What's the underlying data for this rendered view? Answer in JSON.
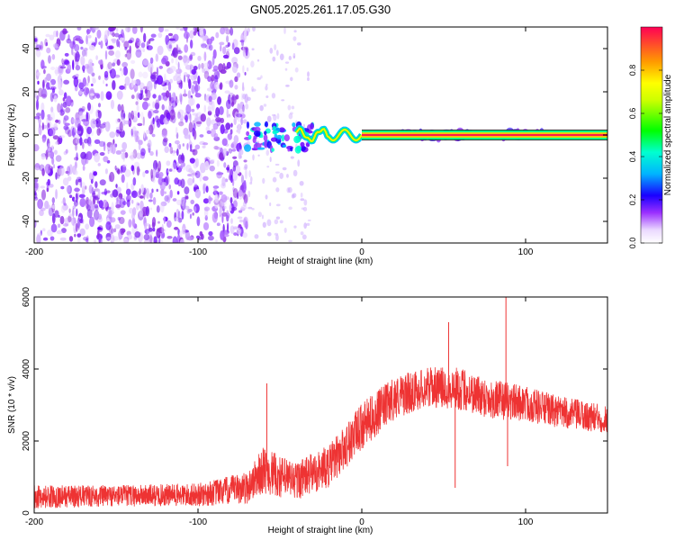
{
  "title": "GN05.2025.261.17.05.G30",
  "chart_data": [
    {
      "type": "heatmap",
      "title": "GN05.2025.261.17.05.G30",
      "xlabel": "Height of straight line (km)",
      "ylabel": "Frequency (Hz)",
      "xlim": [
        -200,
        150
      ],
      "ylim": [
        -50,
        50
      ],
      "x_ticks": [
        "-200",
        "-100",
        "0",
        "100"
      ],
      "y_ticks": [
        "-40",
        "-20",
        "0",
        "20",
        "40"
      ],
      "colorbar": {
        "label": "Normalized spectral amplitude",
        "range": [
          0,
          1
        ],
        "ticks": [
          "0.0",
          "0.2",
          "0.4",
          "0.6",
          "0.8"
        ],
        "colormap": [
          "#ffffff",
          "#f3e8ff",
          "#d8b4ff",
          "#8a2be2",
          "#0000ff",
          "#00c8ff",
          "#00ff66",
          "#ffff00",
          "#ff8800",
          "#ff0055"
        ]
      },
      "features": [
        {
          "region": "noise",
          "x_range": [
            -200,
            -70
          ],
          "freq_range": [
            -50,
            50
          ],
          "amplitude": [
            0.0,
            0.25
          ]
        },
        {
          "region": "transition",
          "x_range": [
            -70,
            -30
          ],
          "freq_range": [
            -8,
            8
          ],
          "amplitude": [
            0.2,
            0.6
          ]
        },
        {
          "region": "carrier",
          "x_range": [
            -30,
            150
          ],
          "freq_center": 0,
          "amplitude": [
            0.9,
            1.0
          ]
        }
      ]
    },
    {
      "type": "line",
      "xlabel": "Height of straight line (km)",
      "ylabel": "SNR (10 * v/v)",
      "xlim": [
        -200,
        150
      ],
      "ylim": [
        0,
        6000
      ],
      "x_ticks": [
        "-200",
        "-100",
        "0",
        "100"
      ],
      "y_ticks": [
        "0",
        "2000",
        "4000",
        "6000"
      ],
      "color": "#ee3333",
      "envelope": {
        "x": [
          -200,
          -150,
          -100,
          -70,
          -60,
          -50,
          -40,
          -20,
          0,
          20,
          40,
          60,
          80,
          100,
          120,
          150
        ],
        "mean": [
          450,
          480,
          500,
          700,
          1200,
          1000,
          900,
          1300,
          2400,
          3200,
          3500,
          3450,
          3150,
          3050,
          2800,
          2600
        ],
        "spread": [
          650,
          600,
          650,
          900,
          1300,
          1200,
          1100,
          1200,
          1300,
          1200,
          1100,
          1200,
          1100,
          1000,
          900,
          800
        ]
      },
      "spikes": [
        {
          "x": -58,
          "y": 3600
        },
        {
          "x": 53,
          "y": 5300
        },
        {
          "x": 57,
          "y": 700
        },
        {
          "x": 88,
          "y": 6000
        },
        {
          "x": 89,
          "y": 1300
        }
      ]
    }
  ]
}
